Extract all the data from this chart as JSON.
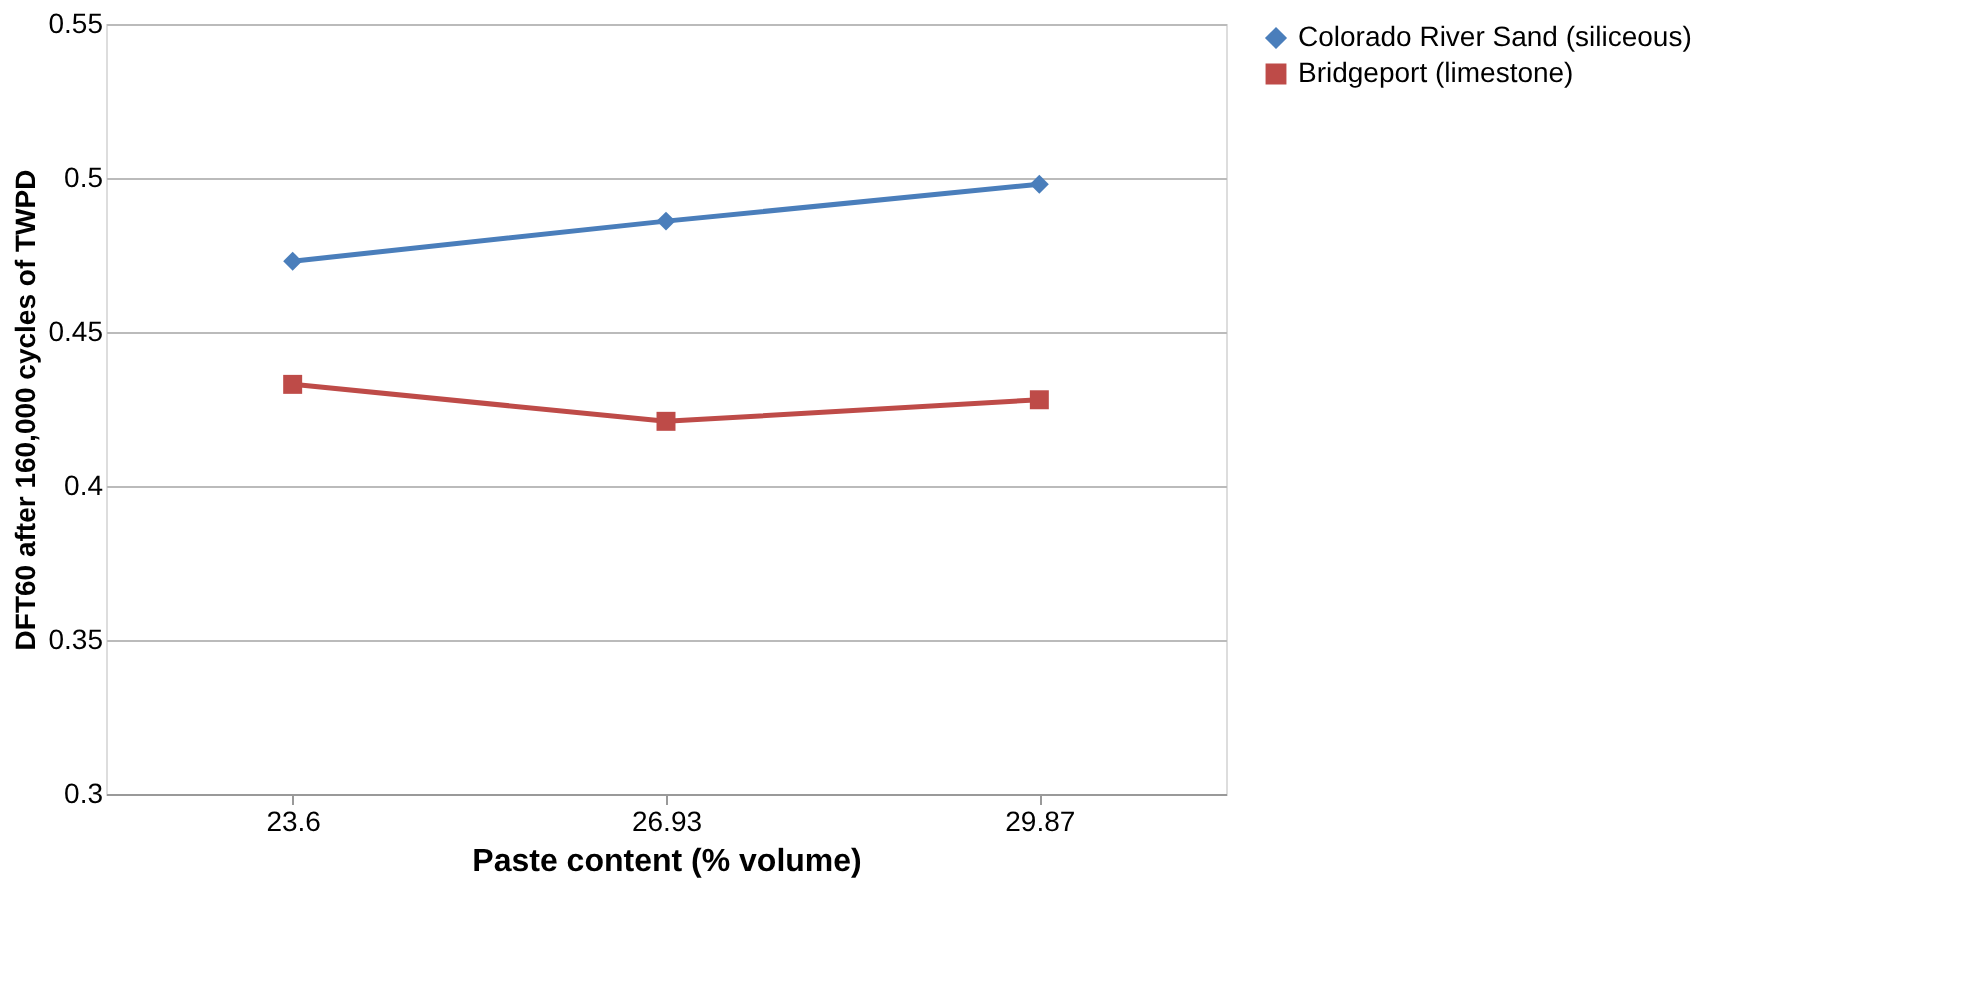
{
  "chart_data": {
    "type": "line",
    "xlabel": "Paste content (%  volume)",
    "ylabel": "DFT60 after 160,000 cycles of TWPD",
    "categories": [
      "23.6",
      "26.93",
      "29.87"
    ],
    "series": [
      {
        "name": "Colorado River Sand (siliceous)",
        "color": "#4a7ebb",
        "marker": "diamond",
        "values": [
          0.473,
          0.486,
          0.498
        ]
      },
      {
        "name": "Bridgeport (limestone)",
        "color": "#be4b48",
        "marker": "square",
        "values": [
          0.433,
          0.421,
          0.428
        ]
      }
    ],
    "ylim": [
      0.3,
      0.55
    ],
    "yticks": [
      0.3,
      0.35,
      0.4,
      0.45,
      0.5,
      0.55
    ],
    "grid": "y",
    "legend": "right",
    "line_style": "solid"
  }
}
